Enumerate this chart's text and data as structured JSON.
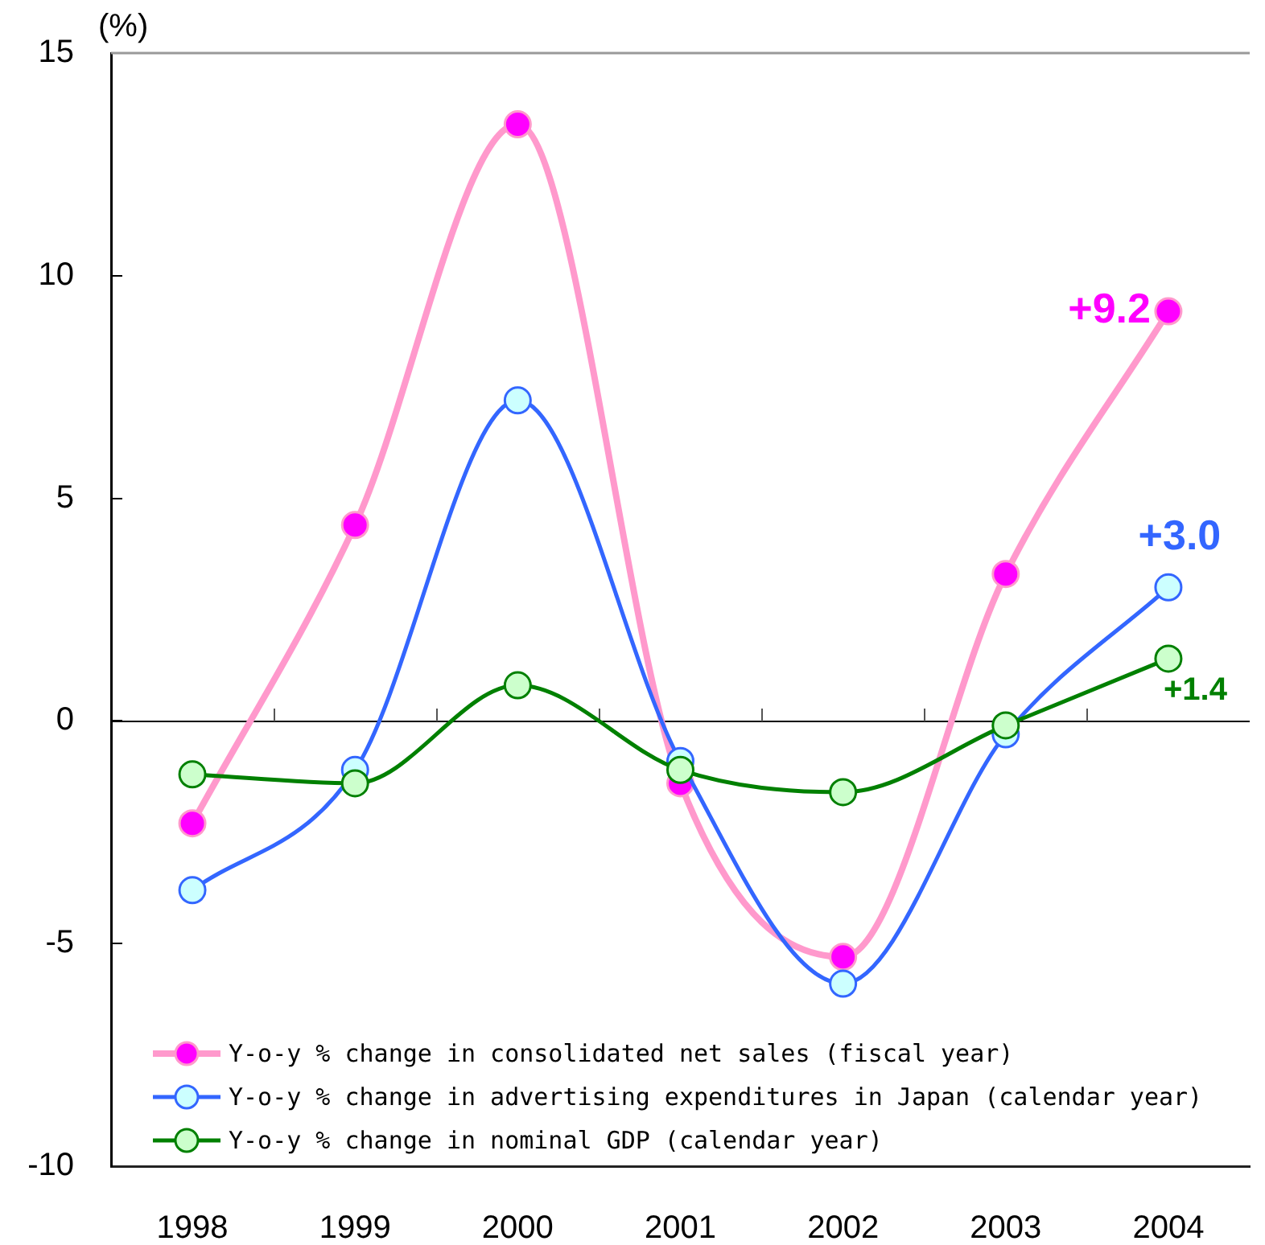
{
  "chart_data": {
    "type": "line",
    "ylabel": "(%)",
    "categories": [
      "1998",
      "1999",
      "2000",
      "2001",
      "2002",
      "2003",
      "2004"
    ],
    "ylim": [
      -10,
      15
    ],
    "yticks": [
      -10,
      -5,
      0,
      5,
      10,
      15
    ],
    "grid": false,
    "legend": "bottom left",
    "marker": "circle",
    "ref_lines": [
      {
        "axis": "y",
        "value": 0,
        "color": "#000000"
      }
    ],
    "series": [
      {
        "name": "Y-o-y % change in consolidated net sales (fiscal year)",
        "color": "#ff99cc",
        "colors": [
          "#ff00ff",
          "#ff00ff",
          "#ff00ff",
          "#ff00ff",
          "#ff00ff",
          "#ff00ff",
          "#ff00ff"
        ],
        "values": [
          -2.3,
          4.4,
          13.4,
          -1.4,
          -5.3,
          3.3,
          9.2
        ],
        "value_labels": [
          null,
          null,
          null,
          null,
          null,
          null,
          "+9.2"
        ]
      },
      {
        "name": "Y-o-y % change in advertising expenditures in Japan (calendar year)",
        "color": "#3366ff",
        "colors": [
          "#ccffff",
          "#ccffff",
          "#ccffff",
          "#ccffff",
          "#ccffff",
          "#ccffff",
          "#ccffff"
        ],
        "values": [
          -3.8,
          -1.1,
          7.2,
          -0.9,
          -5.9,
          -0.3,
          3.0
        ],
        "value_labels": [
          null,
          null,
          null,
          null,
          null,
          null,
          "+3.0"
        ]
      },
      {
        "name": "Y-o-y % change in nominal GDP (calendar year)",
        "color": "#008000",
        "colors": [
          "#ccffcc",
          "#ccffcc",
          "#ccffcc",
          "#ccffcc",
          "#ccffcc",
          "#ccffcc",
          "#ccffcc"
        ],
        "values": [
          -1.2,
          -1.4,
          0.8,
          -1.1,
          -1.6,
          -0.1,
          1.4
        ],
        "value_labels": [
          null,
          null,
          null,
          null,
          null,
          null,
          "+1.4"
        ]
      }
    ]
  }
}
